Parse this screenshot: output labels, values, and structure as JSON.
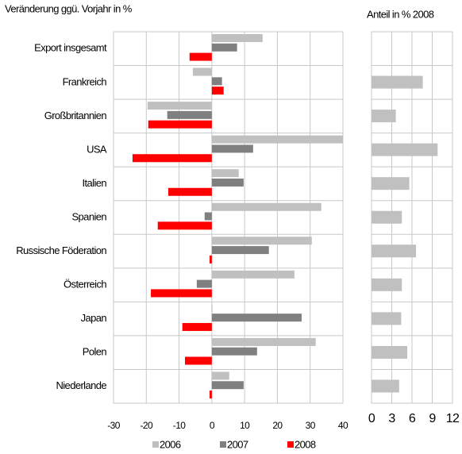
{
  "chart_data": [
    {
      "type": "bar",
      "orientation": "horizontal",
      "title": "Veränderung ggü. Vorjahr in %",
      "categories": [
        "Export insgesamt",
        "Frankreich",
        "Großbritannien",
        "USA",
        "Italien",
        "Spanien",
        "Russische Föderation",
        "Österreich",
        "Japan",
        "Polen",
        "Niederlande"
      ],
      "series": [
        {
          "name": "2006",
          "color": "#c0c0c0",
          "values": [
            15.5,
            -5.8,
            -19.6,
            40,
            8.2,
            33.4,
            30.5,
            25.2,
            0.2,
            31.7,
            5.3
          ]
        },
        {
          "name": "2007",
          "color": "#808080",
          "values": [
            7.7,
            3.1,
            -13.6,
            12.6,
            9.7,
            -2.2,
            17.4,
            -4.6,
            27.4,
            13.8,
            9.7
          ]
        },
        {
          "name": "2008",
          "color": "#ff0000",
          "values": [
            -6.8,
            3.6,
            -19.4,
            -24.2,
            -13.3,
            -16.5,
            -0.7,
            -18.6,
            -9.0,
            -8.2,
            -0.7
          ]
        }
      ],
      "xlim": [
        -30,
        40
      ],
      "xticks": [
        -30,
        -20,
        -10,
        0,
        10,
        20,
        30,
        40
      ],
      "grid": true
    },
    {
      "type": "bar",
      "orientation": "horizontal",
      "title": "Anteil in % 2008",
      "color": "#c0c0c0",
      "values": [
        null,
        7.6,
        3.6,
        9.8,
        5.6,
        4.5,
        6.6,
        4.5,
        4.4,
        5.3,
        4.1
      ],
      "xlim": [
        0,
        12
      ],
      "xticks": [
        0,
        3,
        6,
        9,
        12
      ],
      "grid": true
    }
  ]
}
